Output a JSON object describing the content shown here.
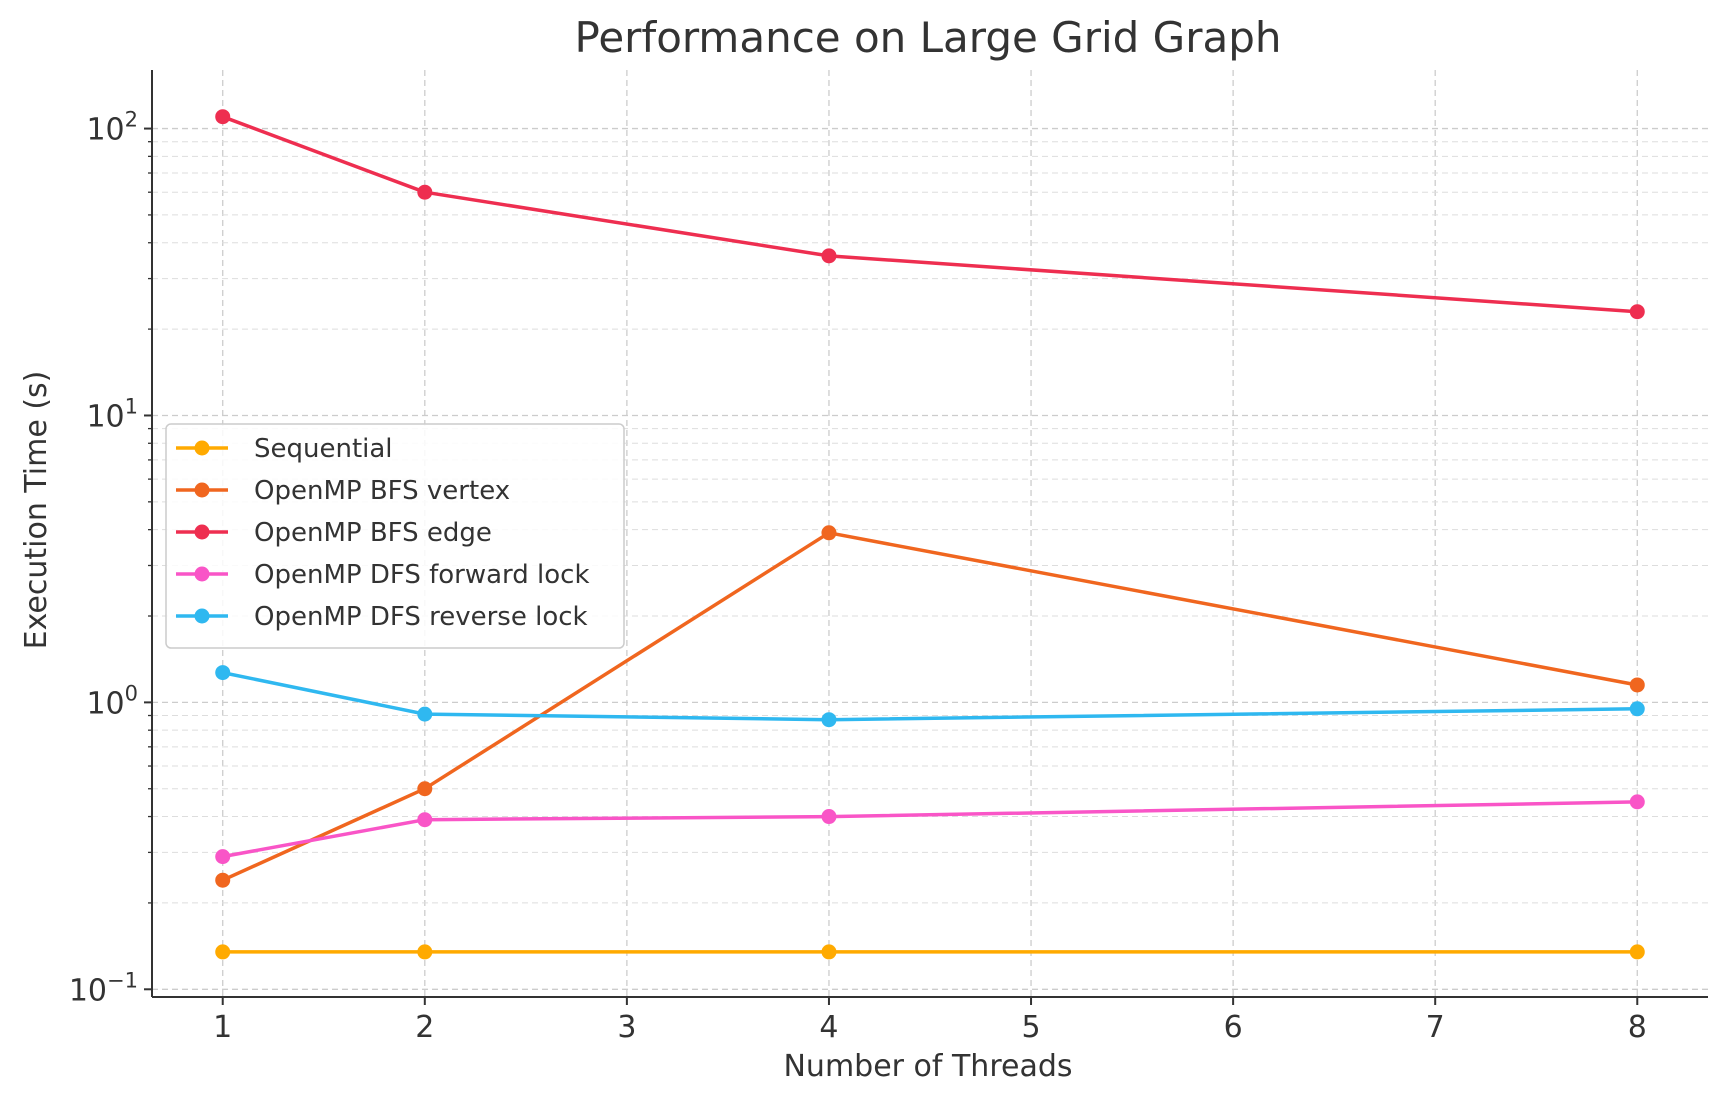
{
  "chart_data": {
    "type": "line",
    "title": "Performance on Large Grid Graph",
    "xlabel": "Number of Threads",
    "ylabel": "Execution Time (s)",
    "yscale": "log",
    "xlim": [
      0.65,
      8.35
    ],
    "ylim": [
      0.094,
      160
    ],
    "x_ticks": [
      1,
      2,
      3,
      4,
      5,
      6,
      7,
      8
    ],
    "y_ticks": [
      {
        "value": 0.1,
        "base": "10",
        "exp": "−1"
      },
      {
        "value": 1,
        "base": "10",
        "exp": "0"
      },
      {
        "value": 10,
        "base": "10",
        "exp": "1"
      },
      {
        "value": 100,
        "base": "10",
        "exp": "2"
      }
    ],
    "grid": true,
    "legend_position": "center-left",
    "x": [
      1,
      2,
      4,
      8
    ],
    "series": [
      {
        "name": "Sequential",
        "color": "#FFAA00",
        "values": [
          0.135,
          0.135,
          0.135,
          0.135
        ]
      },
      {
        "name": "OpenMP BFS vertex",
        "color": "#F0661F",
        "values": [
          0.24,
          0.5,
          3.9,
          1.15
        ]
      },
      {
        "name": "OpenMP BFS edge",
        "color": "#EE2E50",
        "values": [
          110,
          60,
          36,
          23
        ]
      },
      {
        "name": "OpenMP DFS forward lock",
        "color": "#F955C7",
        "values": [
          0.29,
          0.39,
          0.4,
          0.45
        ]
      },
      {
        "name": "OpenMP DFS reverse lock",
        "color": "#2FB8F0",
        "values": [
          1.27,
          0.91,
          0.87,
          0.95
        ]
      }
    ]
  }
}
